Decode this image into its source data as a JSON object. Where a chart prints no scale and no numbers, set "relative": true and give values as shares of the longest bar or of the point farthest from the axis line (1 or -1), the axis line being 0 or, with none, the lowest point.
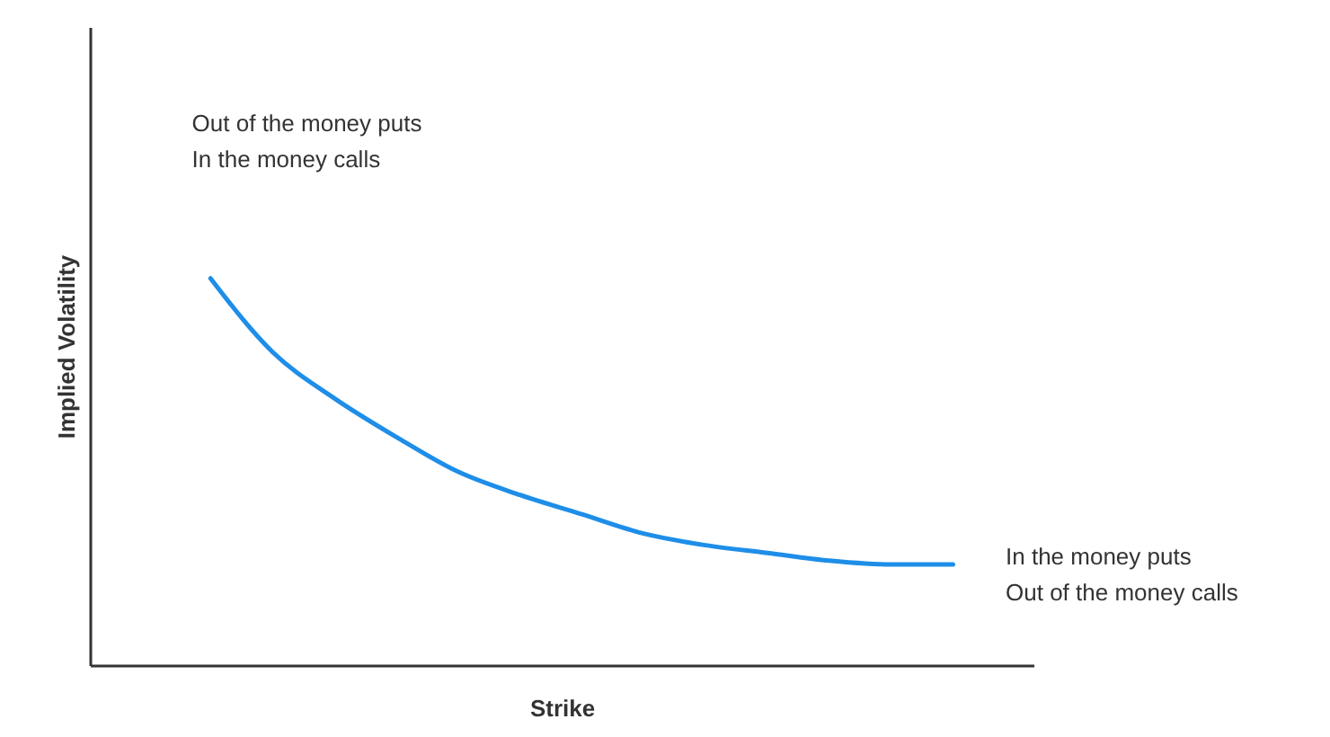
{
  "chart_data": {
    "type": "line",
    "relative": true,
    "xlabel": "Strike",
    "ylabel": "Implied Volatility",
    "categories": [
      null,
      null,
      null,
      null,
      null,
      null,
      null,
      null,
      null,
      null,
      null,
      null,
      null
    ],
    "series": [
      {
        "color": "#1e8ee8",
        "values": [
          1,
          0.81,
          0.69,
          0.59,
          0.5,
          0.44,
          0.39,
          0.34,
          0.31,
          0.29,
          0.27,
          0.26,
          0.26
        ]
      }
    ],
    "annotations": [
      "Out of the money puts\nIn the money calls",
      "In the money puts\nOut of the money calls"
    ],
    "marker": "none",
    "grid": false,
    "tick_labels": false
  }
}
